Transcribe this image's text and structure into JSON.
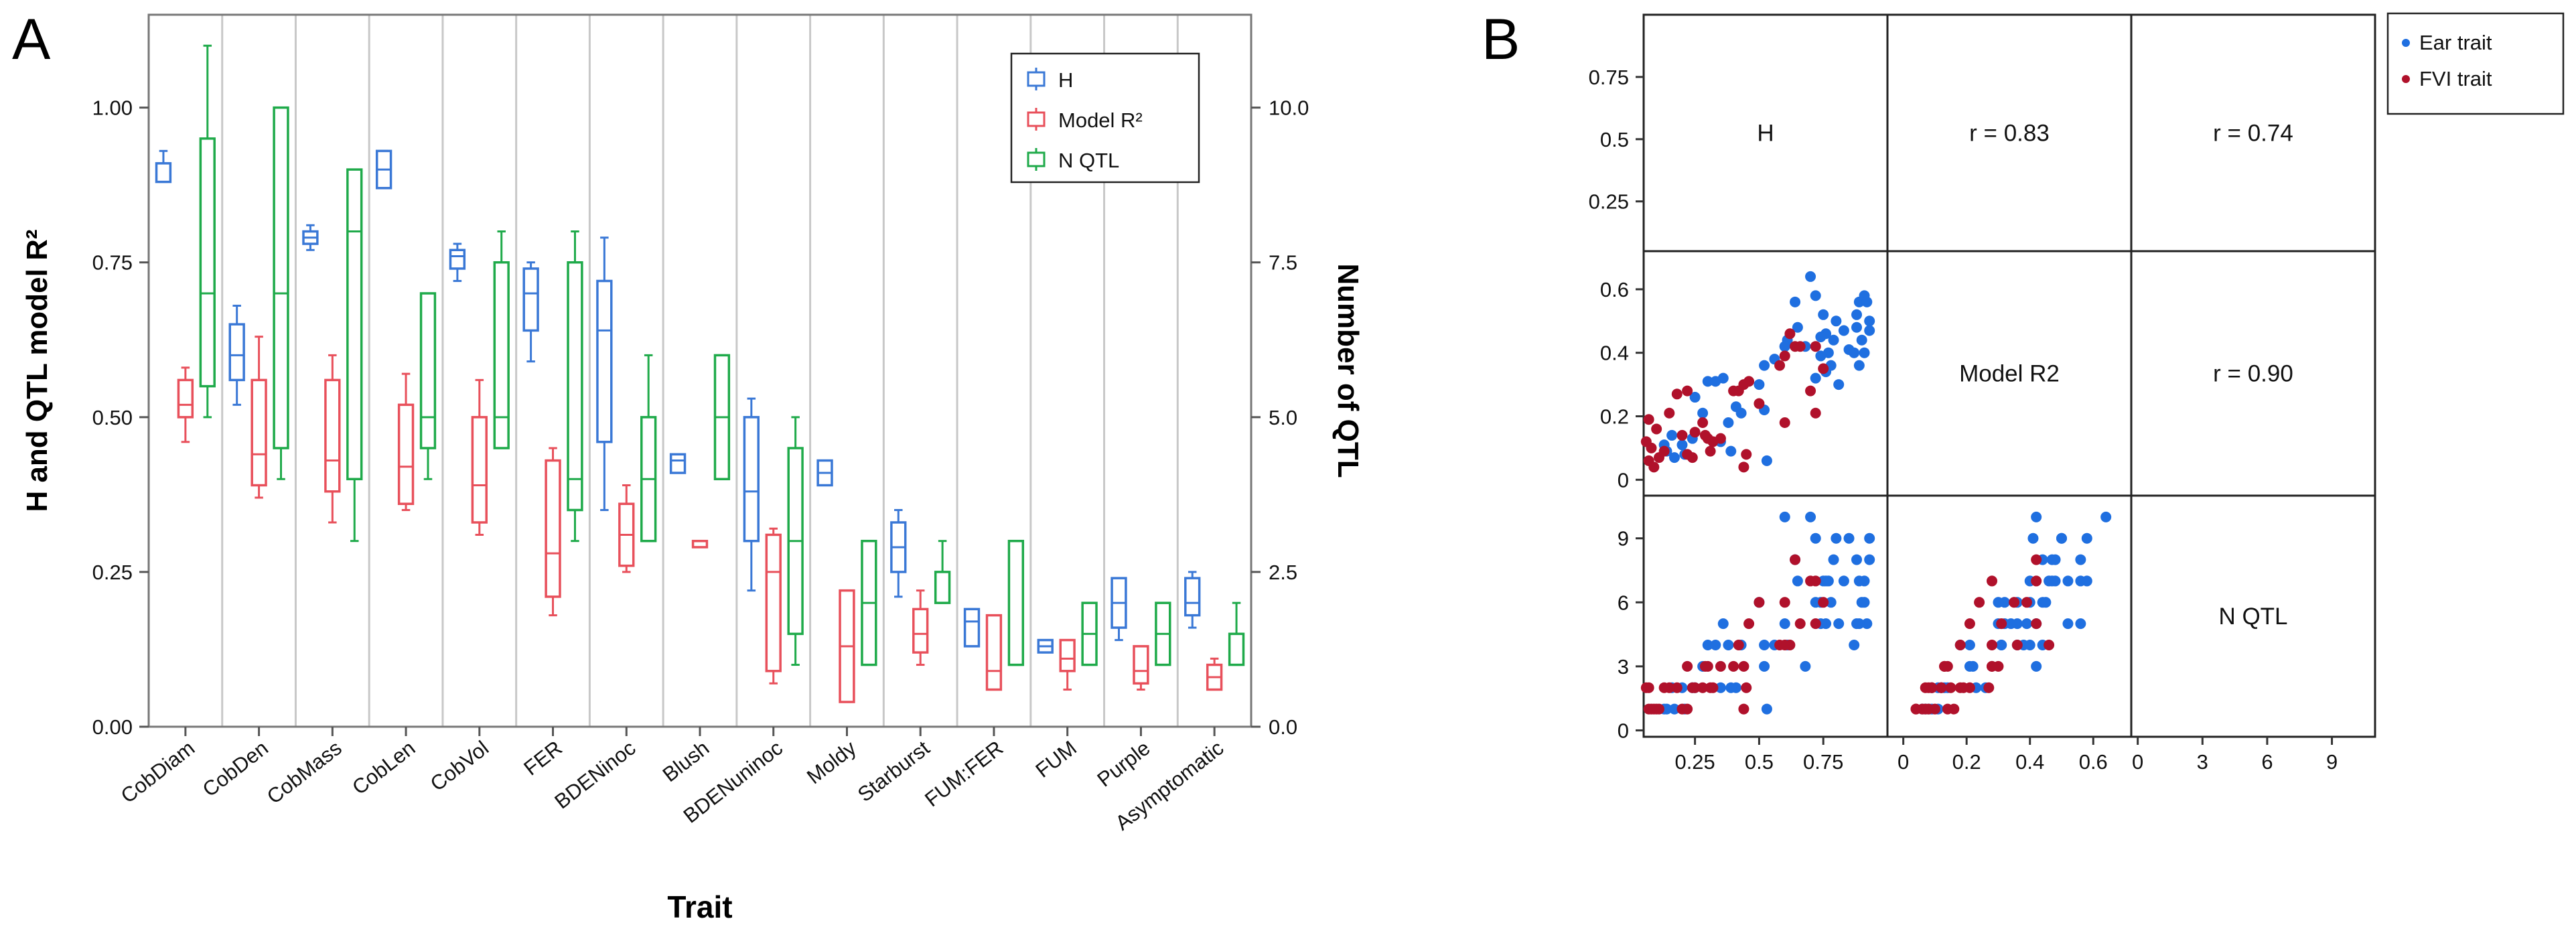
{
  "panel_labels": {
    "a": "A",
    "b": "B"
  },
  "colors": {
    "H": "#3a78d6",
    "ModelR2": "#e8505b",
    "NQTL": "#1faa4a",
    "ear": "#1f6fe0",
    "fvi": "#b0112b",
    "grid": "#c8c8c8"
  },
  "chart_data": [
    {
      "type": "box",
      "panel": "A",
      "title": "",
      "xlabel": "Trait",
      "ylabel_left": "H and QTL model R²",
      "ylabel_right": "Number of QTL",
      "ylim_left": [
        0,
        1.15
      ],
      "ylim_right": [
        0,
        11.5
      ],
      "yticks_left": [
        "0.00",
        "0.25",
        "0.50",
        "0.75",
        "1.00"
      ],
      "yticks_right": [
        "0.0",
        "2.5",
        "5.0",
        "7.5",
        "10.0"
      ],
      "legend": [
        "H",
        "Model R²",
        "N QTL"
      ],
      "categories": [
        "CobDiam",
        "CobDen",
        "CobMass",
        "CobLen",
        "CobVol",
        "FER",
        "BDENinoc",
        "Blush",
        "BDENuninoc",
        "Moldy",
        "Starburst",
        "FUM:FER",
        "FUM",
        "Purple",
        "Asymptomatic"
      ],
      "series": [
        {
          "name": "H",
          "axis": "left",
          "boxes": [
            [
              0.88,
              0.88,
              0.91,
              0.91,
              0.93
            ],
            [
              0.52,
              0.56,
              0.6,
              0.65,
              0.68
            ],
            [
              0.77,
              0.78,
              0.79,
              0.8,
              0.81
            ],
            [
              0.87,
              0.87,
              0.9,
              0.93,
              0.93
            ],
            [
              0.72,
              0.74,
              0.76,
              0.77,
              0.78
            ],
            [
              0.59,
              0.64,
              0.7,
              0.74,
              0.75
            ],
            [
              0.35,
              0.46,
              0.64,
              0.72,
              0.79
            ],
            [
              0.41,
              0.41,
              0.43,
              0.44,
              0.44
            ],
            [
              0.22,
              0.3,
              0.38,
              0.5,
              0.53
            ],
            [
              0.39,
              0.39,
              0.41,
              0.43,
              0.43
            ],
            [
              0.21,
              0.25,
              0.29,
              0.33,
              0.35
            ],
            [
              0.13,
              0.13,
              0.17,
              0.19,
              0.19
            ],
            [
              0.12,
              0.12,
              0.13,
              0.14,
              0.14
            ],
            [
              0.14,
              0.16,
              0.2,
              0.24,
              0.24
            ],
            [
              0.16,
              0.18,
              0.2,
              0.24,
              0.25
            ]
          ]
        },
        {
          "name": "Model R²",
          "axis": "left",
          "boxes": [
            [
              0.46,
              0.5,
              0.52,
              0.56,
              0.58
            ],
            [
              0.37,
              0.39,
              0.44,
              0.56,
              0.63
            ],
            [
              0.33,
              0.38,
              0.43,
              0.56,
              0.6
            ],
            [
              0.35,
              0.36,
              0.42,
              0.52,
              0.57
            ],
            [
              0.31,
              0.33,
              0.39,
              0.5,
              0.56
            ],
            [
              0.18,
              0.21,
              0.28,
              0.43,
              0.45
            ],
            [
              0.25,
              0.26,
              0.31,
              0.36,
              0.39
            ],
            [
              0.29,
              0.29,
              0.3,
              0.3,
              0.3
            ],
            [
              0.07,
              0.09,
              0.25,
              0.31,
              0.32
            ],
            [
              0.04,
              0.04,
              0.13,
              0.22,
              0.22
            ],
            [
              0.1,
              0.12,
              0.15,
              0.19,
              0.22
            ],
            [
              0.06,
              0.06,
              0.09,
              0.18,
              0.18
            ],
            [
              0.06,
              0.09,
              0.11,
              0.14,
              0.14
            ],
            [
              0.06,
              0.07,
              0.09,
              0.13,
              0.13
            ],
            [
              0.06,
              0.06,
              0.08,
              0.1,
              0.11
            ]
          ]
        },
        {
          "name": "N QTL",
          "axis": "right",
          "boxes": [
            [
              5.0,
              5.5,
              7.0,
              9.5,
              11.0
            ],
            [
              4.0,
              4.5,
              7.0,
              10.0,
              10.0
            ],
            [
              3.0,
              4.0,
              8.0,
              9.0,
              9.0
            ],
            [
              4.0,
              4.5,
              5.0,
              7.0,
              7.0
            ],
            [
              4.5,
              4.5,
              5.0,
              7.5,
              8.0
            ],
            [
              3.0,
              3.5,
              4.0,
              7.5,
              8.0
            ],
            [
              3.0,
              3.0,
              4.0,
              5.0,
              6.0
            ],
            [
              4.0,
              4.0,
              5.0,
              6.0,
              6.0
            ],
            [
              1.0,
              1.5,
              3.0,
              4.5,
              5.0
            ],
            [
              1.0,
              1.0,
              2.0,
              3.0,
              3.0
            ],
            [
              2.0,
              2.0,
              2.5,
              2.5,
              3.0
            ],
            [
              1.0,
              1.0,
              1.0,
              3.0,
              3.0
            ],
            [
              1.0,
              1.0,
              1.5,
              2.0,
              2.0
            ],
            [
              1.0,
              1.0,
              1.5,
              2.0,
              2.0
            ],
            [
              1.0,
              1.0,
              1.5,
              1.5,
              2.0
            ]
          ]
        }
      ]
    },
    {
      "type": "scatter_matrix",
      "panel": "B",
      "variables": [
        "H",
        "Model R2",
        "N QTL"
      ],
      "correlations": {
        "H_ModelR2": "r = 0.83",
        "H_NQTL": "r = 0.74",
        "ModelR2_NQTL": "r = 0.90"
      },
      "ticks": {
        "H": [
          "0.25",
          "0.5",
          "0.75"
        ],
        "ModelR2": [
          "0",
          "0.2",
          "0.4",
          "0.6"
        ],
        "NQTL": [
          "0",
          "3",
          "6",
          "9"
        ]
      },
      "ranges": {
        "H": [
          0.05,
          1.0
        ],
        "ModelR2": [
          -0.05,
          0.72
        ],
        "NQTL": [
          -0.3,
          11.0
        ]
      },
      "legend": [
        "Ear trait",
        "FVI trait"
      ],
      "series": [
        {
          "name": "Ear trait",
          "points": [
            [
              0.88,
              0.52,
              5
            ],
            [
              0.91,
              0.58,
              7
            ],
            [
              0.89,
              0.56,
              7
            ],
            [
              0.93,
              0.5,
              9
            ],
            [
              0.9,
              0.44,
              6
            ],
            [
              0.92,
              0.56,
              5
            ],
            [
              0.61,
              0.44,
              4
            ],
            [
              0.56,
              0.38,
              4
            ],
            [
              0.65,
              0.48,
              7
            ],
            [
              0.6,
              0.42,
              5
            ],
            [
              0.52,
              0.36,
              4
            ],
            [
              0.68,
              0.42,
              3
            ],
            [
              0.79,
              0.44,
              8
            ],
            [
              0.8,
              0.5,
              9
            ],
            [
              0.78,
              0.36,
              6
            ],
            [
              0.81,
              0.3,
              5
            ],
            [
              0.77,
              0.4,
              7
            ],
            [
              0.76,
              0.34,
              5
            ],
            [
              0.91,
              0.4,
              6
            ],
            [
              0.93,
              0.47,
              8
            ],
            [
              0.87,
              0.4,
              4
            ],
            [
              0.89,
              0.36,
              5
            ],
            [
              0.72,
              0.32,
              6
            ],
            [
              0.76,
              0.46,
              7
            ],
            [
              0.74,
              0.39,
              5
            ],
            [
              0.7,
              0.64,
              10
            ],
            [
              0.72,
              0.58,
              9
            ],
            [
              0.64,
              0.56,
              8
            ],
            [
              0.75,
              0.52,
              7
            ],
            [
              0.74,
              0.45,
              6
            ],
            [
              0.83,
              0.47,
              7
            ],
            [
              0.85,
              0.41,
              9
            ],
            [
              0.88,
              0.48,
              8
            ],
            [
              0.6,
              0.42,
              10
            ],
            [
              0.52,
              0.22,
              3
            ],
            [
              0.5,
              0.3,
              6
            ],
            [
              0.36,
              0.32,
              5
            ],
            [
              0.38,
              0.18,
              4
            ],
            [
              0.41,
              0.23,
              2
            ],
            [
              0.43,
              0.21,
              4
            ],
            [
              0.25,
              0.26,
              2
            ],
            [
              0.3,
              0.31,
              4
            ],
            [
              0.28,
              0.21,
              3
            ],
            [
              0.33,
              0.31,
              4
            ],
            [
              0.35,
              0.12,
              2
            ],
            [
              0.17,
              0.07,
              1
            ],
            [
              0.14,
              0.09,
              1
            ],
            [
              0.2,
              0.11,
              2
            ],
            [
              0.24,
              0.13,
              2
            ],
            [
              0.13,
              0.11,
              1
            ],
            [
              0.21,
              0.08,
              1
            ],
            [
              0.16,
              0.14,
              2
            ],
            [
              0.39,
              0.09,
              2
            ],
            [
              0.53,
              0.06,
              1
            ]
          ]
        },
        {
          "name": "FVI trait",
          "points": [
            [
              0.7,
              0.28,
              7
            ],
            [
              0.64,
              0.42,
              8
            ],
            [
              0.75,
              0.35,
              6
            ],
            [
              0.72,
              0.21,
              5
            ],
            [
              0.58,
              0.36,
              4
            ],
            [
              0.6,
              0.39,
              6
            ],
            [
              0.62,
              0.46,
              4
            ],
            [
              0.46,
              0.31,
              5
            ],
            [
              0.35,
              0.13,
              3
            ],
            [
              0.28,
              0.18,
              2
            ],
            [
              0.22,
              0.28,
              3
            ],
            [
              0.18,
              0.27,
              2
            ],
            [
              0.15,
              0.21,
              2
            ],
            [
              0.1,
              0.16,
              1
            ],
            [
              0.08,
              0.1,
              1
            ],
            [
              0.07,
              0.06,
              1
            ],
            [
              0.11,
              0.07,
              1
            ],
            [
              0.13,
              0.09,
              2
            ],
            [
              0.09,
              0.04,
              1
            ],
            [
              0.07,
              0.19,
              2
            ],
            [
              0.06,
              0.12,
              2
            ],
            [
              0.2,
              0.14,
              1
            ],
            [
              0.22,
              0.08,
              1
            ],
            [
              0.25,
              0.15,
              2
            ],
            [
              0.29,
              0.14,
              3
            ],
            [
              0.32,
              0.12,
              2
            ],
            [
              0.31,
              0.09,
              2
            ],
            [
              0.4,
              0.28,
              3
            ],
            [
              0.42,
              0.28,
              4
            ],
            [
              0.44,
              0.3,
              3
            ],
            [
              0.44,
              0.04,
              1
            ],
            [
              0.5,
              0.24,
              6
            ],
            [
              0.6,
              0.18,
              4
            ],
            [
              0.66,
              0.42,
              5
            ],
            [
              0.72,
              0.42,
              7
            ],
            [
              0.45,
              0.08,
              2
            ],
            [
              0.3,
              0.13,
              3
            ],
            [
              0.24,
              0.07,
              2
            ]
          ]
        }
      ]
    }
  ]
}
